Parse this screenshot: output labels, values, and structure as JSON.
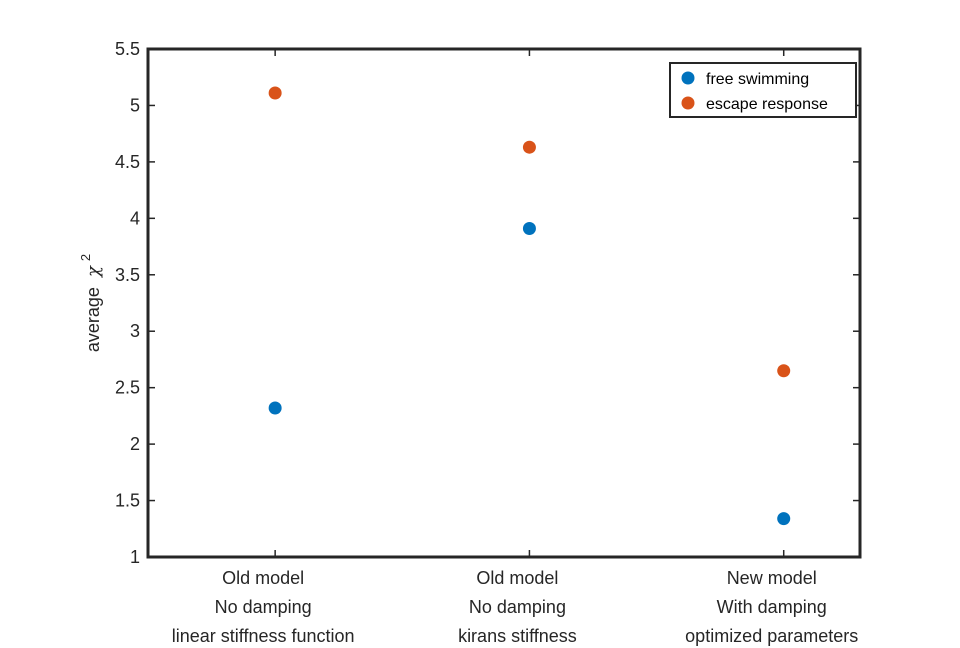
{
  "chart_data": {
    "type": "scatter",
    "title": "",
    "xlabel": "",
    "ylabel": "average",
    "ylabel_symbol": "χ",
    "ylabel_superscript": "2",
    "ylim": [
      1,
      5.5
    ],
    "yticks": [
      1,
      1.5,
      2,
      2.5,
      3,
      3.5,
      4,
      4.5,
      5,
      5.5
    ],
    "ytick_labels": [
      "1",
      "1.5",
      "2",
      "2.5",
      "3",
      "3.5",
      "4",
      "4.5",
      "5",
      "5.5"
    ],
    "xlim": [
      0.5,
      3.3
    ],
    "categories": [
      [
        "Old model",
        "No damping",
        "linear stiffness function"
      ],
      [
        "Old model",
        "No damping",
        "kirans stiffness"
      ],
      [
        "New model",
        "With damping",
        "optimized parameters"
      ]
    ],
    "x": [
      1,
      2,
      3
    ],
    "series": [
      {
        "name": "free swimming",
        "color": "#0072BD",
        "values": [
          2.32,
          3.91,
          1.34
        ]
      },
      {
        "name": "escape response",
        "color": "#D95319",
        "values": [
          5.11,
          4.63,
          2.65
        ]
      }
    ],
    "grid": false,
    "legend_position": "top-right"
  }
}
